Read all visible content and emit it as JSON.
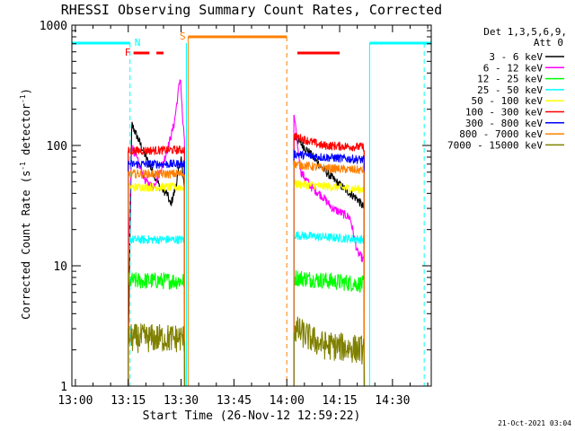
{
  "chart_data": {
    "type": "line",
    "title": "RHESSI Observing Summary Count Rates, Corrected",
    "xlabel": "Start Time (26-Nov-12 12:59:22)",
    "ylabel_main": "Corrected Count Rate (s",
    "ylabel_sup1": "-1",
    "ylabel_mid": " detector",
    "ylabel_sup2": "-1",
    "ylabel_end": ")",
    "x_ticks": [
      "13:00",
      "13:15",
      "13:30",
      "13:45",
      "14:00",
      "14:15",
      "14:30"
    ],
    "x_tick_minutes": [
      0,
      15,
      30,
      45,
      60,
      75,
      90
    ],
    "y_ticks": [
      "1",
      "10",
      "100",
      "1000"
    ],
    "y_tick_values": [
      1,
      10,
      100,
      1000
    ],
    "xlim_minutes": [
      -1,
      101
    ],
    "ylim": [
      1,
      1000
    ],
    "y_scale": "log",
    "legend_header": [
      "Det 1,3,5,6,9,",
      "Att 0"
    ],
    "legend_placement": "right",
    "timestamp": "21-Oct-2021 03:04",
    "segments": [
      [
        15,
        31
      ],
      [
        62,
        82
      ]
    ],
    "series": [
      {
        "name": "3 - 6 keV",
        "color": "#000000",
        "level": [
          [
            15,
            2
          ],
          [
            16,
            150
          ],
          [
            18,
            110
          ],
          [
            20,
            80
          ],
          [
            22,
            60
          ],
          [
            24,
            45
          ],
          [
            26,
            40
          ],
          [
            27,
            32
          ],
          [
            28,
            40
          ],
          [
            29,
            55
          ],
          [
            30,
            80
          ],
          [
            31,
            40
          ],
          [
            62,
            120
          ],
          [
            66,
            90
          ],
          [
            70,
            65
          ],
          [
            74,
            50
          ],
          [
            77,
            42
          ],
          [
            80,
            36
          ],
          [
            82,
            30
          ]
        ]
      },
      {
        "name": "6 - 12 keV",
        "color": "#ff00ff",
        "level": [
          [
            15,
            11
          ],
          [
            16,
            100
          ],
          [
            18,
            70
          ],
          [
            20,
            50
          ],
          [
            22,
            45
          ],
          [
            24,
            60
          ],
          [
            26,
            90
          ],
          [
            28,
            150
          ],
          [
            29,
            250
          ],
          [
            29.8,
            380
          ],
          [
            30.5,
            150
          ],
          [
            31,
            110
          ],
          [
            62,
            180
          ],
          [
            64,
            60
          ],
          [
            67,
            45
          ],
          [
            70,
            38
          ],
          [
            73,
            30
          ],
          [
            76,
            27
          ],
          [
            78,
            25
          ],
          [
            80,
            13
          ],
          [
            82,
            11
          ]
        ]
      },
      {
        "name": "12 - 25 keV",
        "color": "#00ff00",
        "level": [
          [
            15,
            7.5
          ],
          [
            31,
            7.5
          ],
          [
            62,
            8
          ],
          [
            82,
            7
          ]
        ]
      },
      {
        "name": "25 - 50 keV",
        "color": "#00ffff",
        "level": [
          [
            15,
            16.5
          ],
          [
            31,
            16.5
          ],
          [
            62,
            18
          ],
          [
            82,
            16.5
          ]
        ]
      },
      {
        "name": "50 - 100 keV",
        "color": "#ffff00",
        "level": [
          [
            15,
            45
          ],
          [
            31,
            45
          ],
          [
            62,
            48
          ],
          [
            82,
            43
          ]
        ]
      },
      {
        "name": "100 - 300 keV",
        "color": "#ff0000",
        "level": [
          [
            15,
            90
          ],
          [
            31,
            92
          ],
          [
            62,
            120
          ],
          [
            70,
            100
          ],
          [
            82,
            97
          ]
        ]
      },
      {
        "name": "300 - 800 keV",
        "color": "#0000ff",
        "level": [
          [
            15,
            70
          ],
          [
            31,
            70
          ],
          [
            62,
            85
          ],
          [
            70,
            80
          ],
          [
            82,
            76
          ]
        ]
      },
      {
        "name": "800 - 7000 keV",
        "color": "#ff8000",
        "level": [
          [
            15,
            58
          ],
          [
            31,
            58
          ],
          [
            62,
            70
          ],
          [
            70,
            65
          ],
          [
            82,
            62
          ]
        ]
      },
      {
        "name": "7000 - 15000 keV",
        "color": "#808000",
        "level": [
          [
            15,
            2.5
          ],
          [
            31,
            2.5
          ],
          [
            62,
            3
          ],
          [
            70,
            2.2
          ],
          [
            82,
            2
          ]
        ]
      }
    ],
    "markers": {
      "N_label": "N",
      "S_label": "S",
      "F_label": "F",
      "N_color": "#00ffff",
      "S_color": "#ff8000",
      "F_color": "#ff0000",
      "night_bars": [
        [
          -1,
          15.5
        ],
        [
          83.5,
          101
        ]
      ],
      "night_lines": [
        15.5,
        31.5,
        83.5,
        99
      ],
      "saa_bar": [
        32,
        60
      ],
      "saa_lines": [
        32,
        60
      ],
      "flare_bars": [
        [
          16.5,
          21
        ],
        [
          23,
          25
        ],
        [
          63,
          75
        ]
      ]
    }
  }
}
